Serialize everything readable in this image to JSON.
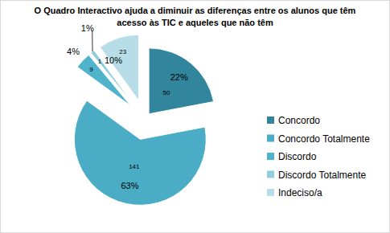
{
  "chart_data": {
    "type": "pie",
    "title": "O Quadro Interactivo ajuda a diminuir as diferenças entre os alunos que têm acesso às TIC e aqueles que não têm",
    "categories": [
      "Concordo",
      "Concordo Totalmente",
      "Discordo",
      "Discordo Totalmente",
      "Indeciso/a"
    ],
    "values": [
      22,
      63,
      4,
      1,
      10
    ],
    "value_labels": [
      "22%",
      "63%",
      "4%",
      "1%",
      "10%"
    ],
    "counts": [
      50,
      141,
      9,
      1,
      23
    ],
    "colors": [
      "#31859c",
      "#4bacc6",
      "#4fb3cb",
      "#92cddc",
      "#b7dee8"
    ],
    "data_labels": true,
    "legend": "right"
  }
}
